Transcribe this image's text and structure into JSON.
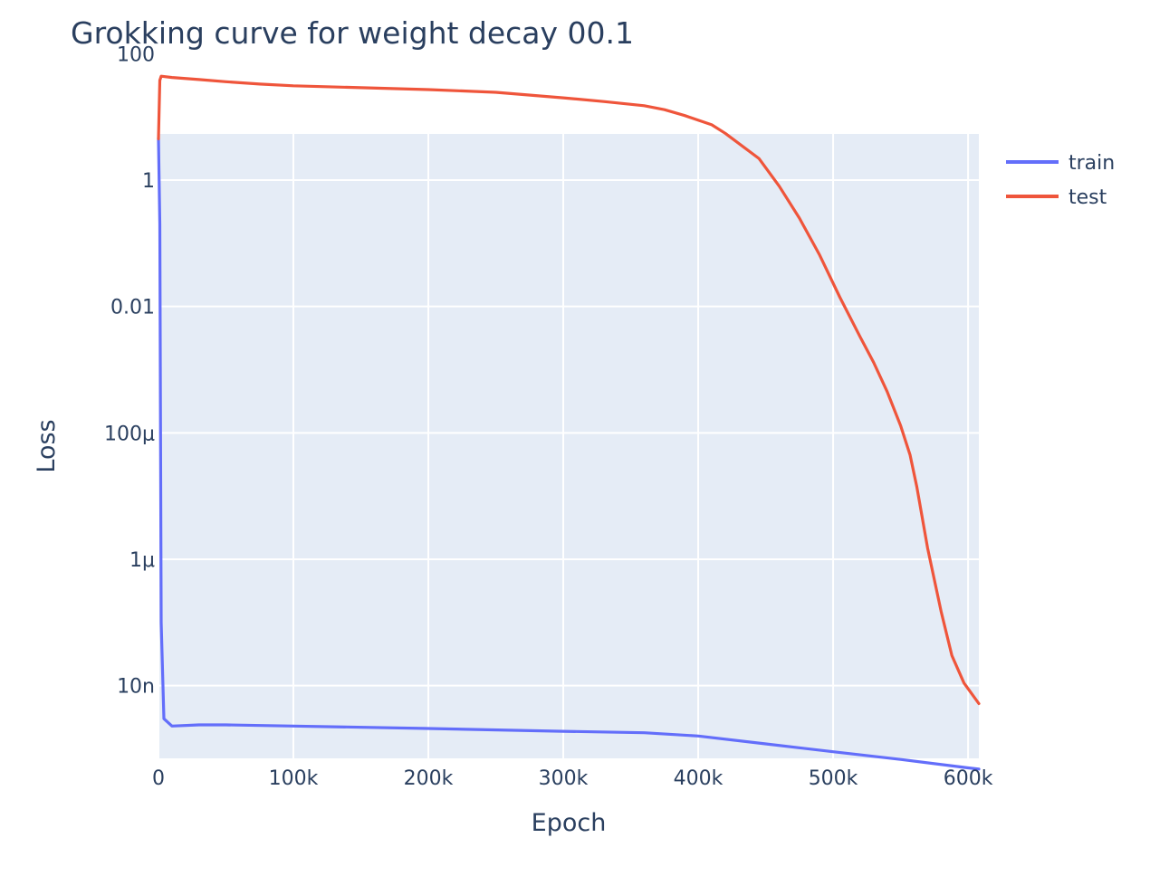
{
  "chart_data": {
    "type": "line",
    "title": "Grokking curve for weight decay 00.1",
    "xlabel": "Epoch",
    "ylabel": "Loss",
    "xlim": [
      0,
      608000
    ],
    "ylim_log10": [
      -9.15,
      0.73
    ],
    "yscale": "log",
    "grid": true,
    "legend_position": "top-right",
    "x_ticks": [
      {
        "value": 0,
        "label": "0"
      },
      {
        "value": 100000,
        "label": "100k"
      },
      {
        "value": 200000,
        "label": "200k"
      },
      {
        "value": 300000,
        "label": "300k"
      },
      {
        "value": 400000,
        "label": "400k"
      },
      {
        "value": 500000,
        "label": "500k"
      },
      {
        "value": 600000,
        "label": "600k"
      }
    ],
    "y_ticks": [
      {
        "value": 100,
        "label": "100"
      },
      {
        "value": 1,
        "label": "1"
      },
      {
        "value": 0.01,
        "label": "0.01"
      },
      {
        "value": 0.0001,
        "label": "100μ"
      },
      {
        "value": 1e-06,
        "label": "1μ"
      },
      {
        "value": 1e-08,
        "label": "10n"
      }
    ],
    "series": [
      {
        "name": "train",
        "color": "#636efa",
        "x": [
          0,
          1000,
          2000,
          4000,
          10000,
          30000,
          50000,
          100000,
          200000,
          300000,
          360000,
          400000,
          450000,
          500000,
          550000,
          600000,
          608000
        ],
        "y": [
          4.6,
          0.2,
          1e-07,
          3e-09,
          2.3e-09,
          2.4e-09,
          2.4e-09,
          2.3e-09,
          2.1e-09,
          1.9e-09,
          1.8e-09,
          1.6e-09,
          1.2e-09,
          9e-10,
          6.8e-10,
          5e-10,
          4.8e-10
        ]
      },
      {
        "name": "test",
        "color": "#ef553b",
        "x": [
          0,
          1000,
          2000,
          10000,
          30000,
          50000,
          75000,
          100000,
          150000,
          200000,
          250000,
          300000,
          330000,
          360000,
          375000,
          390000,
          410000,
          420000,
          445000,
          460000,
          475000,
          490000,
          505000,
          520000,
          530000,
          540000,
          550000,
          557000,
          562000,
          570000,
          580000,
          588000,
          597000,
          608000
        ],
        "y": [
          4.5,
          38,
          44,
          42,
          39,
          36,
          33,
          31,
          29,
          27,
          24.5,
          20,
          17.5,
          15,
          13,
          10.5,
          7.5,
          5.5,
          2.2,
          0.8,
          0.25,
          0.065,
          0.014,
          0.0033,
          0.0013,
          0.00045,
          0.00013,
          4.5e-05,
          1.4e-05,
          1.5e-06,
          1.5e-07,
          3e-08,
          1.1e-08,
          5.2e-09
        ]
      }
    ]
  }
}
